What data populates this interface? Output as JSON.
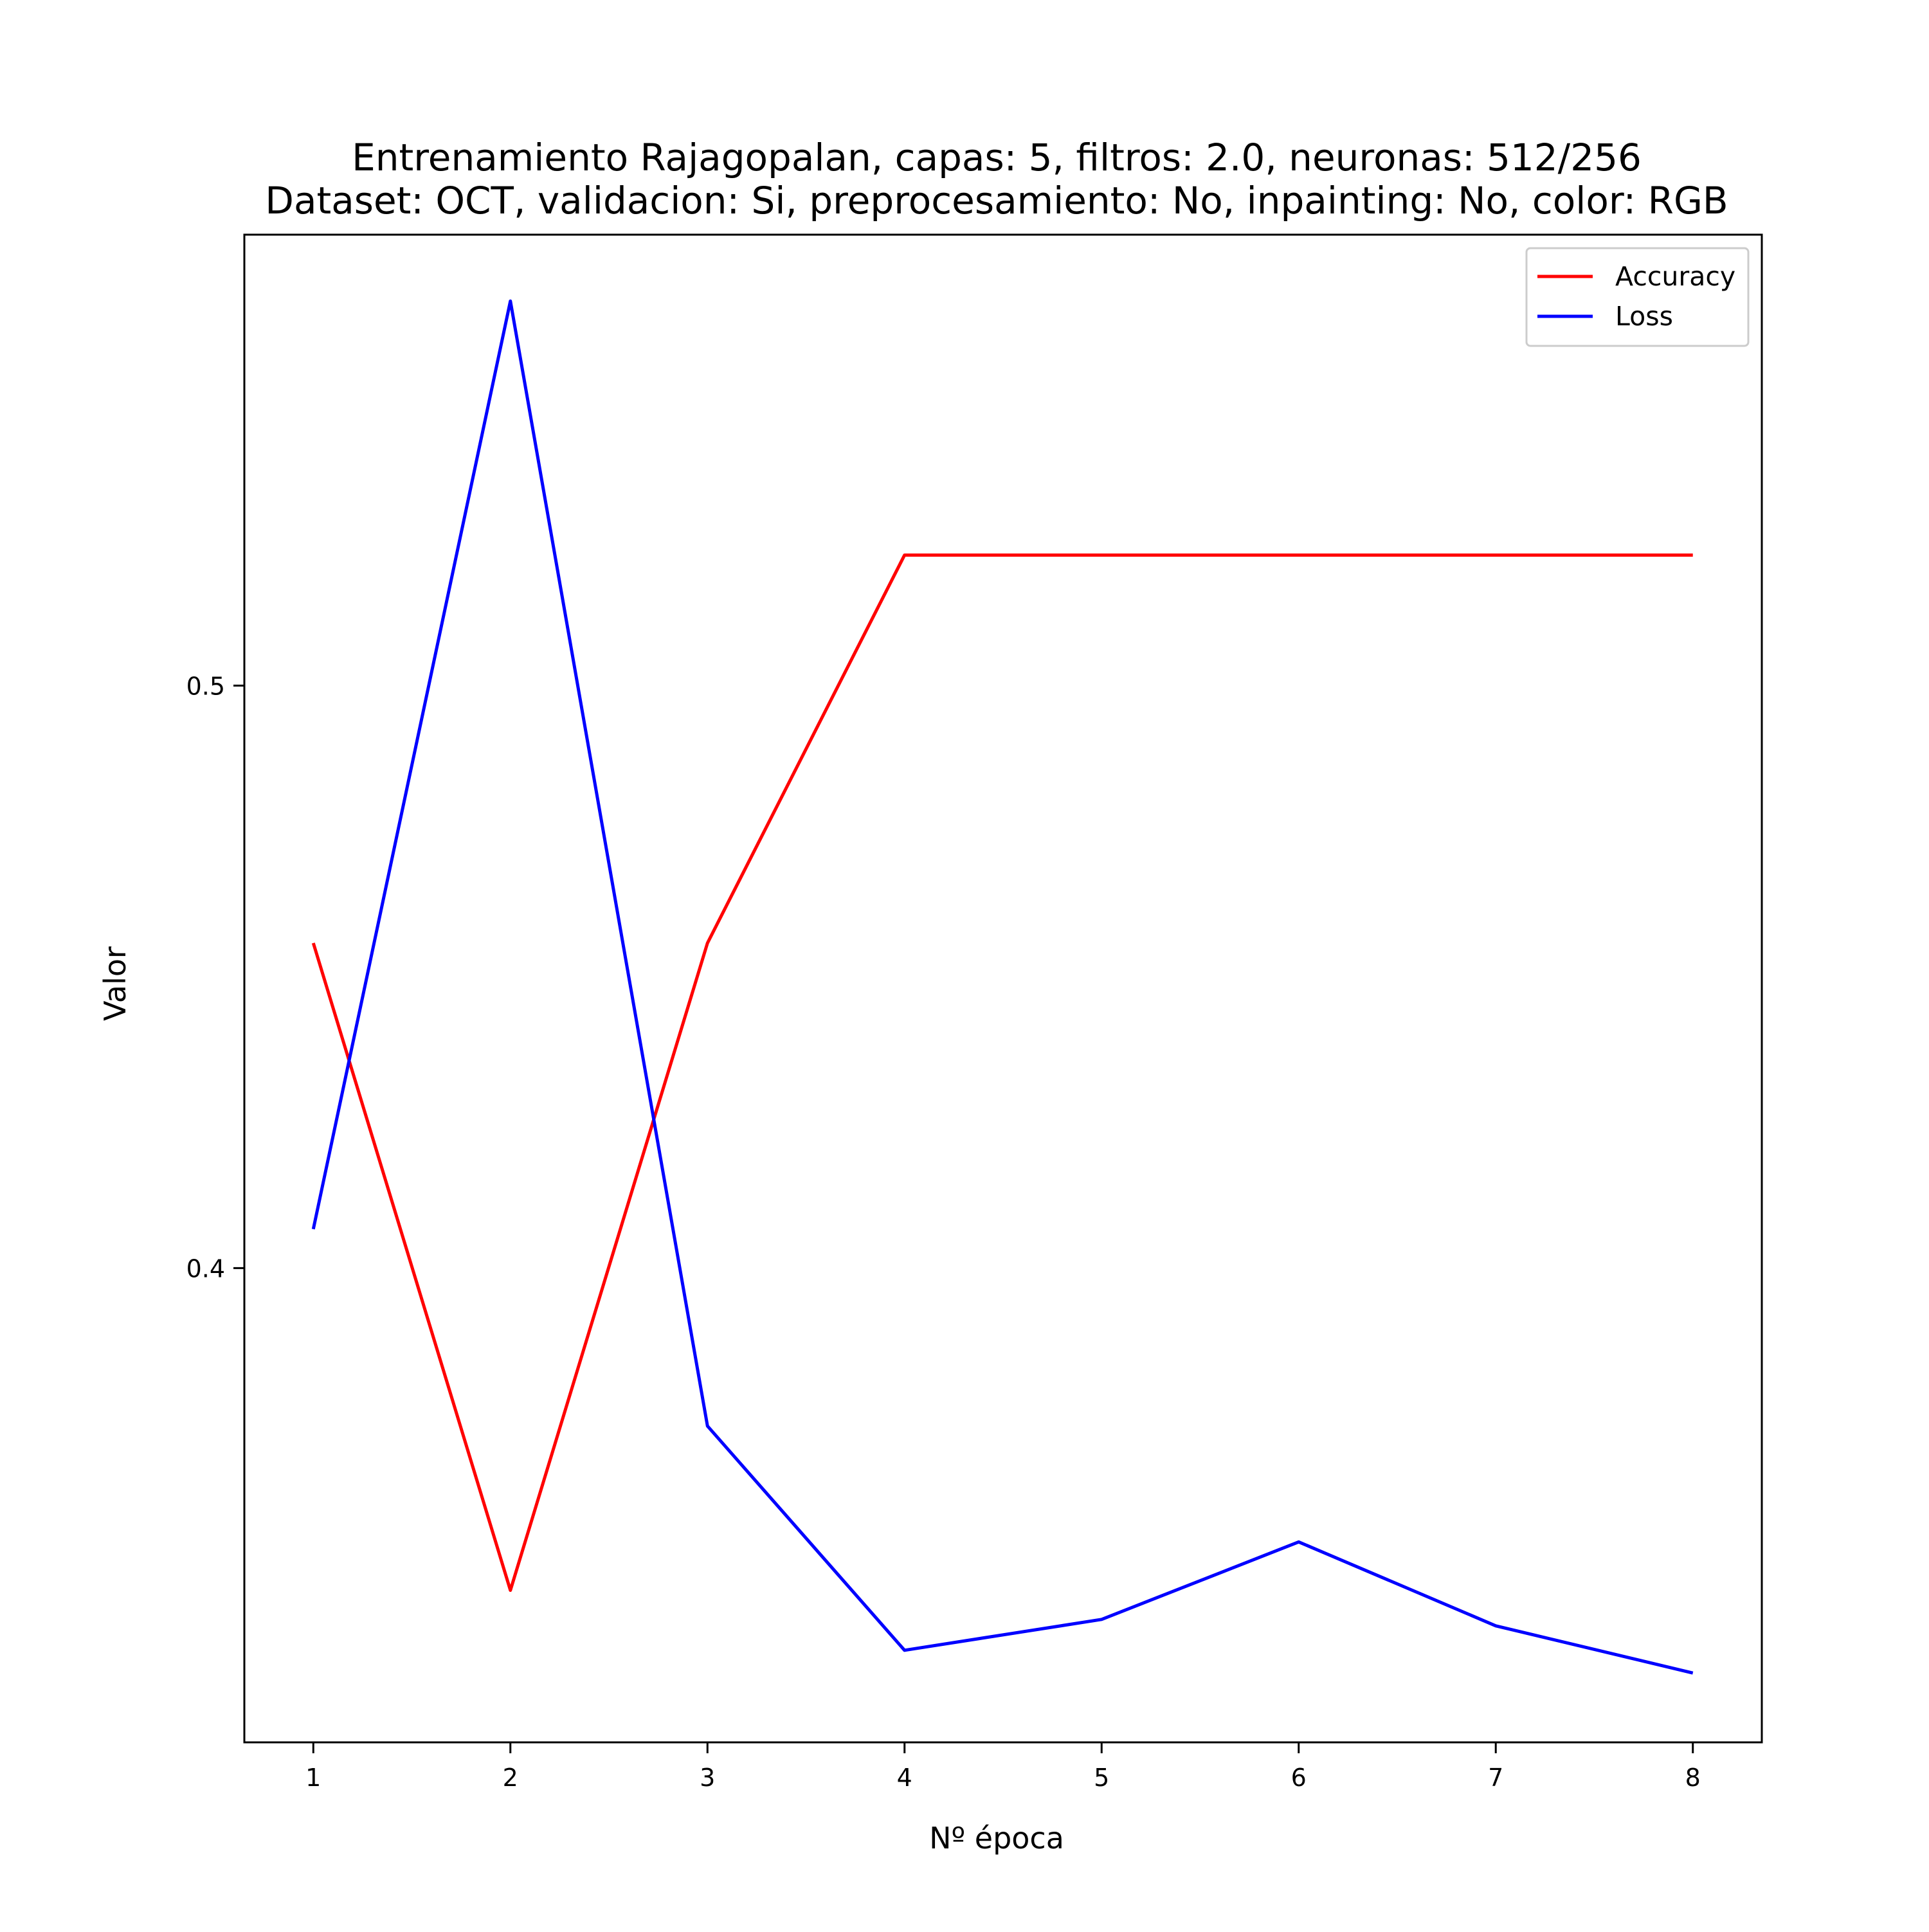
{
  "chart_data": {
    "type": "line",
    "title": [
      "Entrenamiento Rajagopalan, capas: 5, filtros: 2.0, neuronas: 512/256",
      "Dataset: OCT, validacion: Si, preprocesamiento: No, inpainting: No, color: RGB"
    ],
    "xlabel": "Nº época",
    "ylabel": "Valor",
    "x": [
      1,
      2,
      3,
      4,
      5,
      6,
      7,
      8
    ],
    "x_ticks": [
      "1",
      "2",
      "3",
      "4",
      "5",
      "6",
      "7",
      "8"
    ],
    "y_ticks": [
      {
        "value": 0.4,
        "label": "0.4"
      },
      {
        "value": 0.5,
        "label": "0.5"
      }
    ],
    "xlim": [
      0.65,
      8.35
    ],
    "ylim": [
      0.3186,
      0.5774
    ],
    "grid": false,
    "legend_position": "upper right",
    "series": [
      {
        "name": "Accuracy",
        "color": "#ff0000",
        "values": [
          0.4558,
          0.3447,
          0.4558,
          0.5224,
          0.5224,
          0.5224,
          0.5224,
          0.5224
        ]
      },
      {
        "name": "Loss",
        "color": "#0000ff",
        "values": [
          0.4067,
          0.566,
          0.3729,
          0.3344,
          0.3397,
          0.353,
          0.3386,
          0.3305
        ]
      }
    ]
  }
}
